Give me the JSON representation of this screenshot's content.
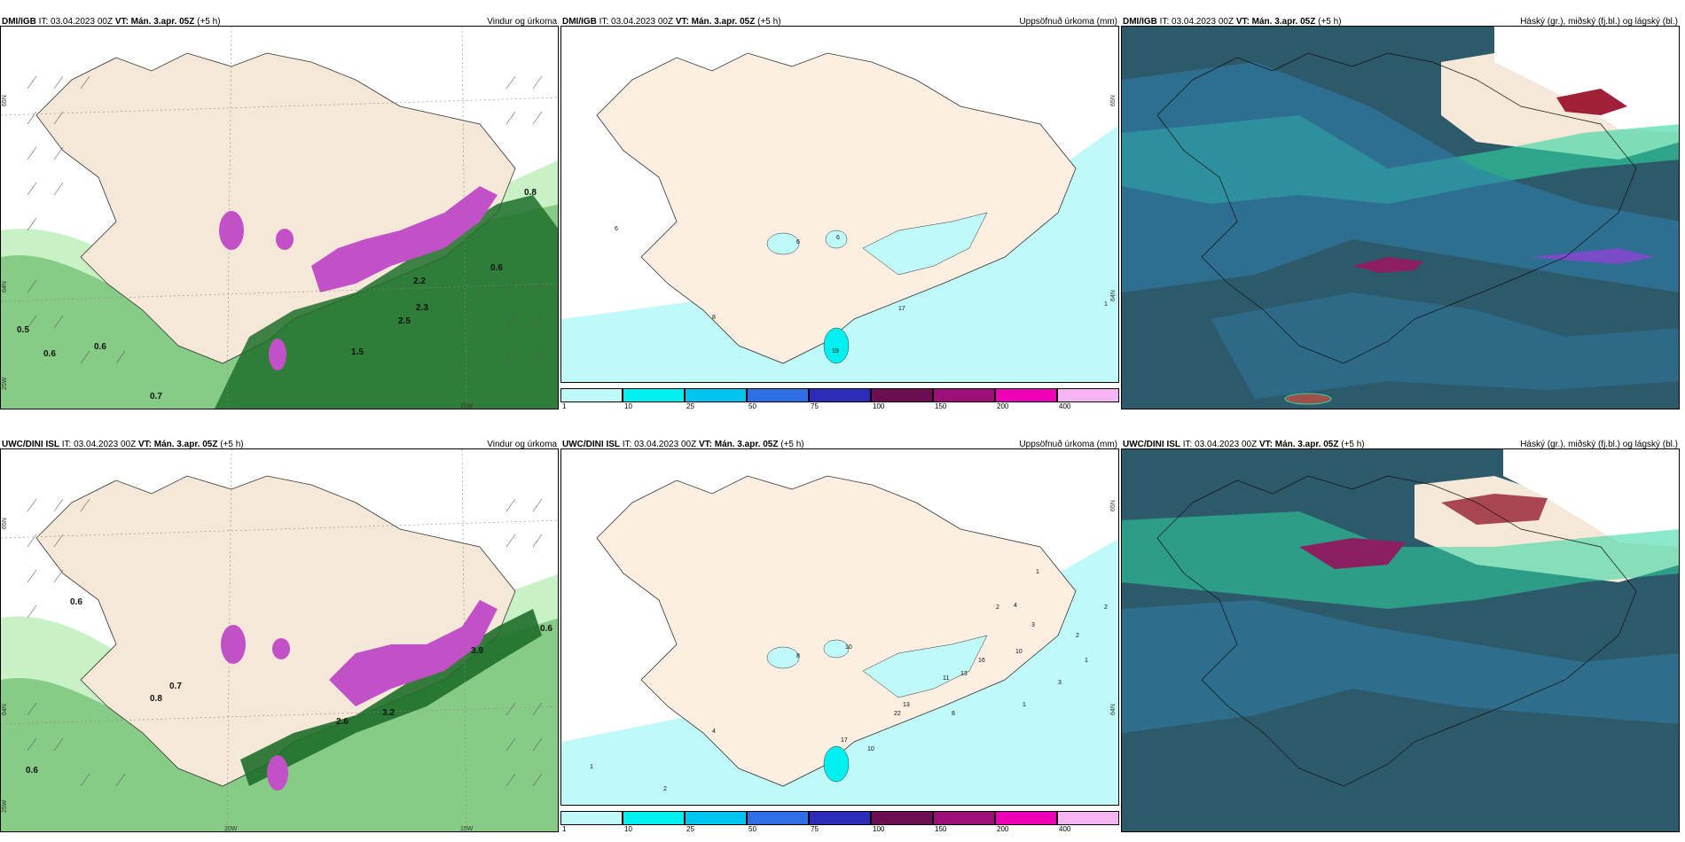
{
  "panels": [
    {
      "model": "DMI/IGB",
      "it": "IT: 03.04.2023 00Z",
      "vt_label": "VT:",
      "vt": "Mán. 3.apr. 05Z",
      "lead": "(+5 h)",
      "product": "Vindur og úrkoma"
    },
    {
      "model": "DMI/IGB",
      "it": "IT: 03.04.2023 00Z",
      "vt_label": "VT:",
      "vt": "Mán. 3.apr. 05Z",
      "lead": "(+5 h)",
      "product": "Uppsöfnuð úrkoma (mm)"
    },
    {
      "model": "DMI/IGB",
      "it": "IT: 03.04.2023 00Z",
      "vt_label": "VT:",
      "vt": "Mán. 3.apr. 05Z",
      "lead": "(+5 h)",
      "product": "Háský (gr.), miðský (fj.bl.) og lágský (bl.)"
    },
    {
      "model": "UWC/DINI ISL",
      "it": "IT: 03.04.2023 00Z",
      "vt_label": "VT:",
      "vt": "Mán. 3.apr. 05Z",
      "lead": "(+5 h)",
      "product": "Vindur og úrkoma"
    },
    {
      "model": "UWC/DINI ISL",
      "it": "IT: 03.04.2023 00Z",
      "vt_label": "VT:",
      "vt": "Mán. 3.apr. 05Z",
      "lead": "(+5 h)",
      "product": "Uppsöfnuð úrkoma (mm)"
    },
    {
      "model": "UWC/DINI ISL",
      "it": "IT: 03.04.2023 00Z",
      "vt_label": "VT:",
      "vt": "Mán. 3.apr. 05Z",
      "lead": "(+5 h)",
      "product": "Háský (gr.), miðský (fj.bl.) og lágský (bl.)"
    }
  ],
  "map_labels": {
    "wind_top": {
      "lat1": "65N",
      "lat2": "64N",
      "lon1": "25W",
      "lon2": "15W",
      "values": [
        "0.8",
        "0.6",
        "0.5",
        "0.6",
        "0.6",
        "0.7",
        "2.2",
        "2.3",
        "2.5",
        "1.5"
      ]
    },
    "wind_bottom": {
      "lat1": "65N",
      "lat2": "64N",
      "lon1": "25W",
      "lon2": "20W",
      "lon3": "15W",
      "values": [
        "0.6",
        "0.6",
        "0.7",
        "0.8",
        "0.6",
        "2.6",
        "3.2",
        "3.9"
      ]
    },
    "precip_top": {
      "lat1": "65N",
      "lat2": "64N",
      "values": [
        "6",
        "6",
        "6",
        "17",
        "19",
        "1",
        "8"
      ]
    },
    "precip_bottom": {
      "lat1": "65N",
      "lat2": "64N",
      "values": [
        "10",
        "8",
        "4",
        "22",
        "13",
        "10",
        "17",
        "1",
        "2",
        "4",
        "3",
        "2",
        "1",
        "2",
        "11",
        "13",
        "16",
        "8",
        "10",
        "1",
        "2",
        "3",
        "1"
      ]
    }
  },
  "colorbar": {
    "ticks": [
      "1",
      "10",
      "25",
      "50",
      "75",
      "100",
      "150",
      "200",
      "400"
    ],
    "colors": [
      "#bff9f9",
      "#00f0f0",
      "#00c5ee",
      "#2f6fe6",
      "#2c2cb8",
      "#6d0d52",
      "#9c0f78",
      "#ee00b6",
      "#f5b4f2"
    ]
  },
  "colors": {
    "land": "#f6e8d8",
    "ocean": "#ffffff",
    "precip_light": "#c8f2c6",
    "precip_mid": "#86cc86",
    "precip_dark": "#1e6e2a",
    "snow": "#c251c8",
    "cloud_low": "#2d5a6b",
    "cloud_mid": "#2f7fae",
    "cloud_high": "#2ed6a0"
  }
}
